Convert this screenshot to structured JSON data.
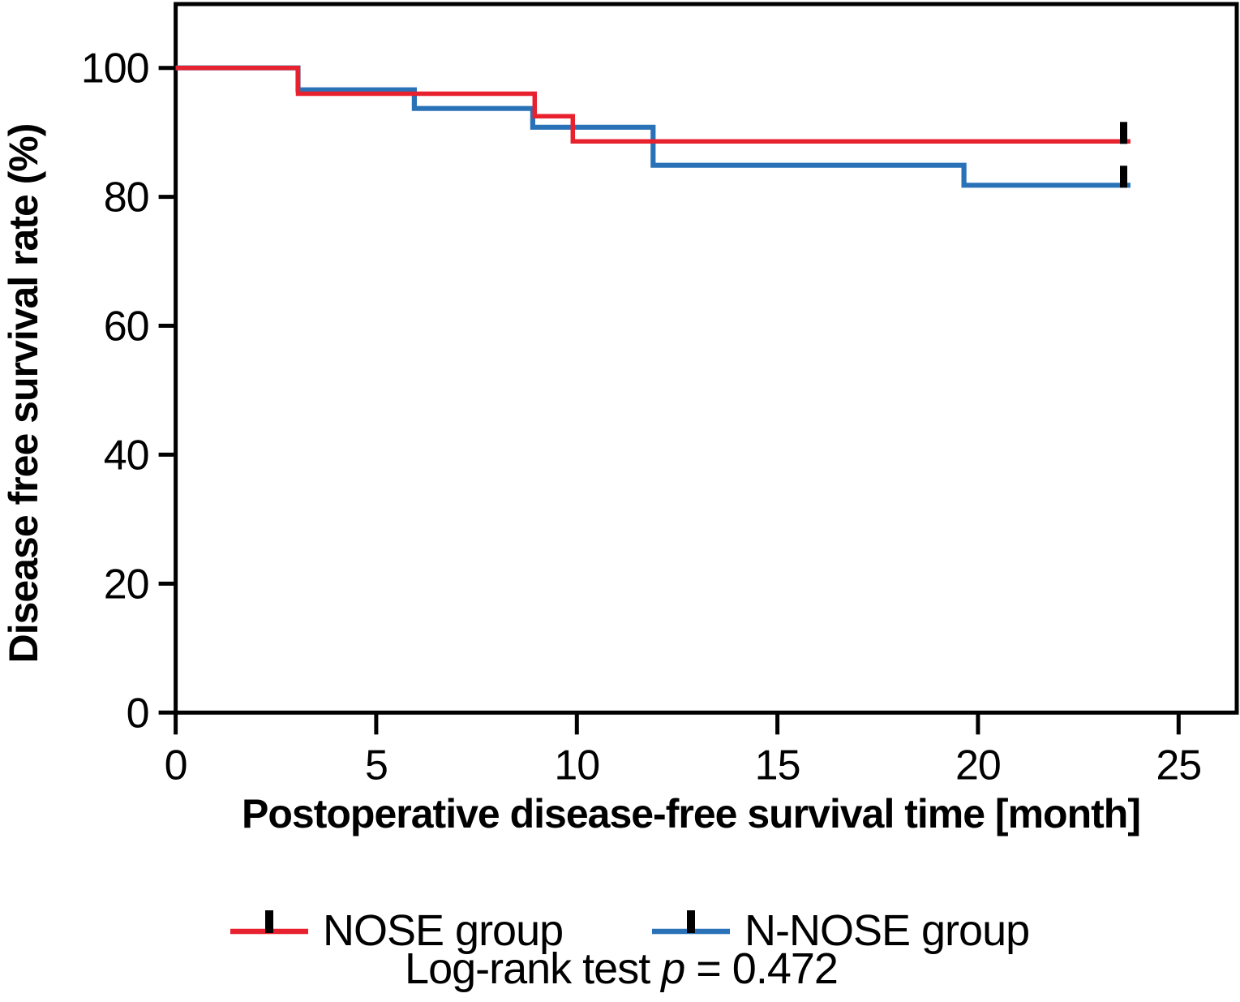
{
  "chart_data": {
    "type": "line",
    "subtype": "kaplan-meier-step",
    "title": "",
    "xlabel": "Postoperative disease-free survival time [month]",
    "ylabel": "Disease free survival rate (%)",
    "xlim": [
      0,
      26.45
    ],
    "ylim": [
      0,
      109.9
    ],
    "xticks": [
      0,
      5,
      10,
      15,
      20,
      25
    ],
    "yticks": [
      0,
      20,
      40,
      60,
      80,
      100
    ],
    "grid": false,
    "legend_position": "bottom",
    "axis_color": "#000000",
    "censor_mark_color": "#000000",
    "series": [
      {
        "name": "NOSE group",
        "color": "#e8212f",
        "points": [
          [
            0,
            100
          ],
          [
            3.05,
            100
          ],
          [
            3.05,
            96
          ],
          [
            8.95,
            96
          ],
          [
            8.95,
            92.5
          ],
          [
            9.9,
            92.5
          ],
          [
            9.9,
            88.6
          ],
          [
            23.8,
            88.6
          ]
        ],
        "censor_marks": [
          [
            23.63,
            88.6
          ]
        ]
      },
      {
        "name": "N-NOSE group",
        "color": "#2a72b8",
        "points": [
          [
            0,
            100
          ],
          [
            3.05,
            100
          ],
          [
            3.05,
            96.6
          ],
          [
            5.95,
            96.6
          ],
          [
            5.95,
            93.7
          ],
          [
            8.9,
            93.7
          ],
          [
            8.9,
            90.8
          ],
          [
            11.9,
            90.8
          ],
          [
            11.9,
            84.9
          ],
          [
            19.65,
            84.9
          ],
          [
            19.65,
            81.8
          ],
          [
            23.8,
            81.8
          ]
        ],
        "censor_marks": [
          [
            23.63,
            81.8
          ]
        ]
      }
    ],
    "annotation": {
      "prefix": "Log-rank test ",
      "p_symbol": "p",
      "suffix": " = 0.472"
    }
  }
}
